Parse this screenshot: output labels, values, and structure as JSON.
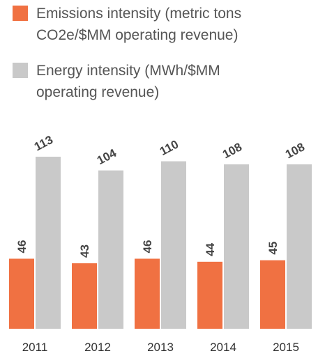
{
  "chart_data": {
    "type": "bar",
    "categories": [
      "2011",
      "2012",
      "2013",
      "2014",
      "2015"
    ],
    "series": [
      {
        "name": "Emissions intensity (metric tons CO2e/$MM operating revenue)",
        "color": "#f07142",
        "values": [
          46,
          43,
          46,
          44,
          45
        ]
      },
      {
        "name": "Energy intensity (MWh/$MM operating revenue)",
        "color": "#c9c9c9",
        "values": [
          113,
          104,
          110,
          108,
          108
        ]
      }
    ]
  }
}
